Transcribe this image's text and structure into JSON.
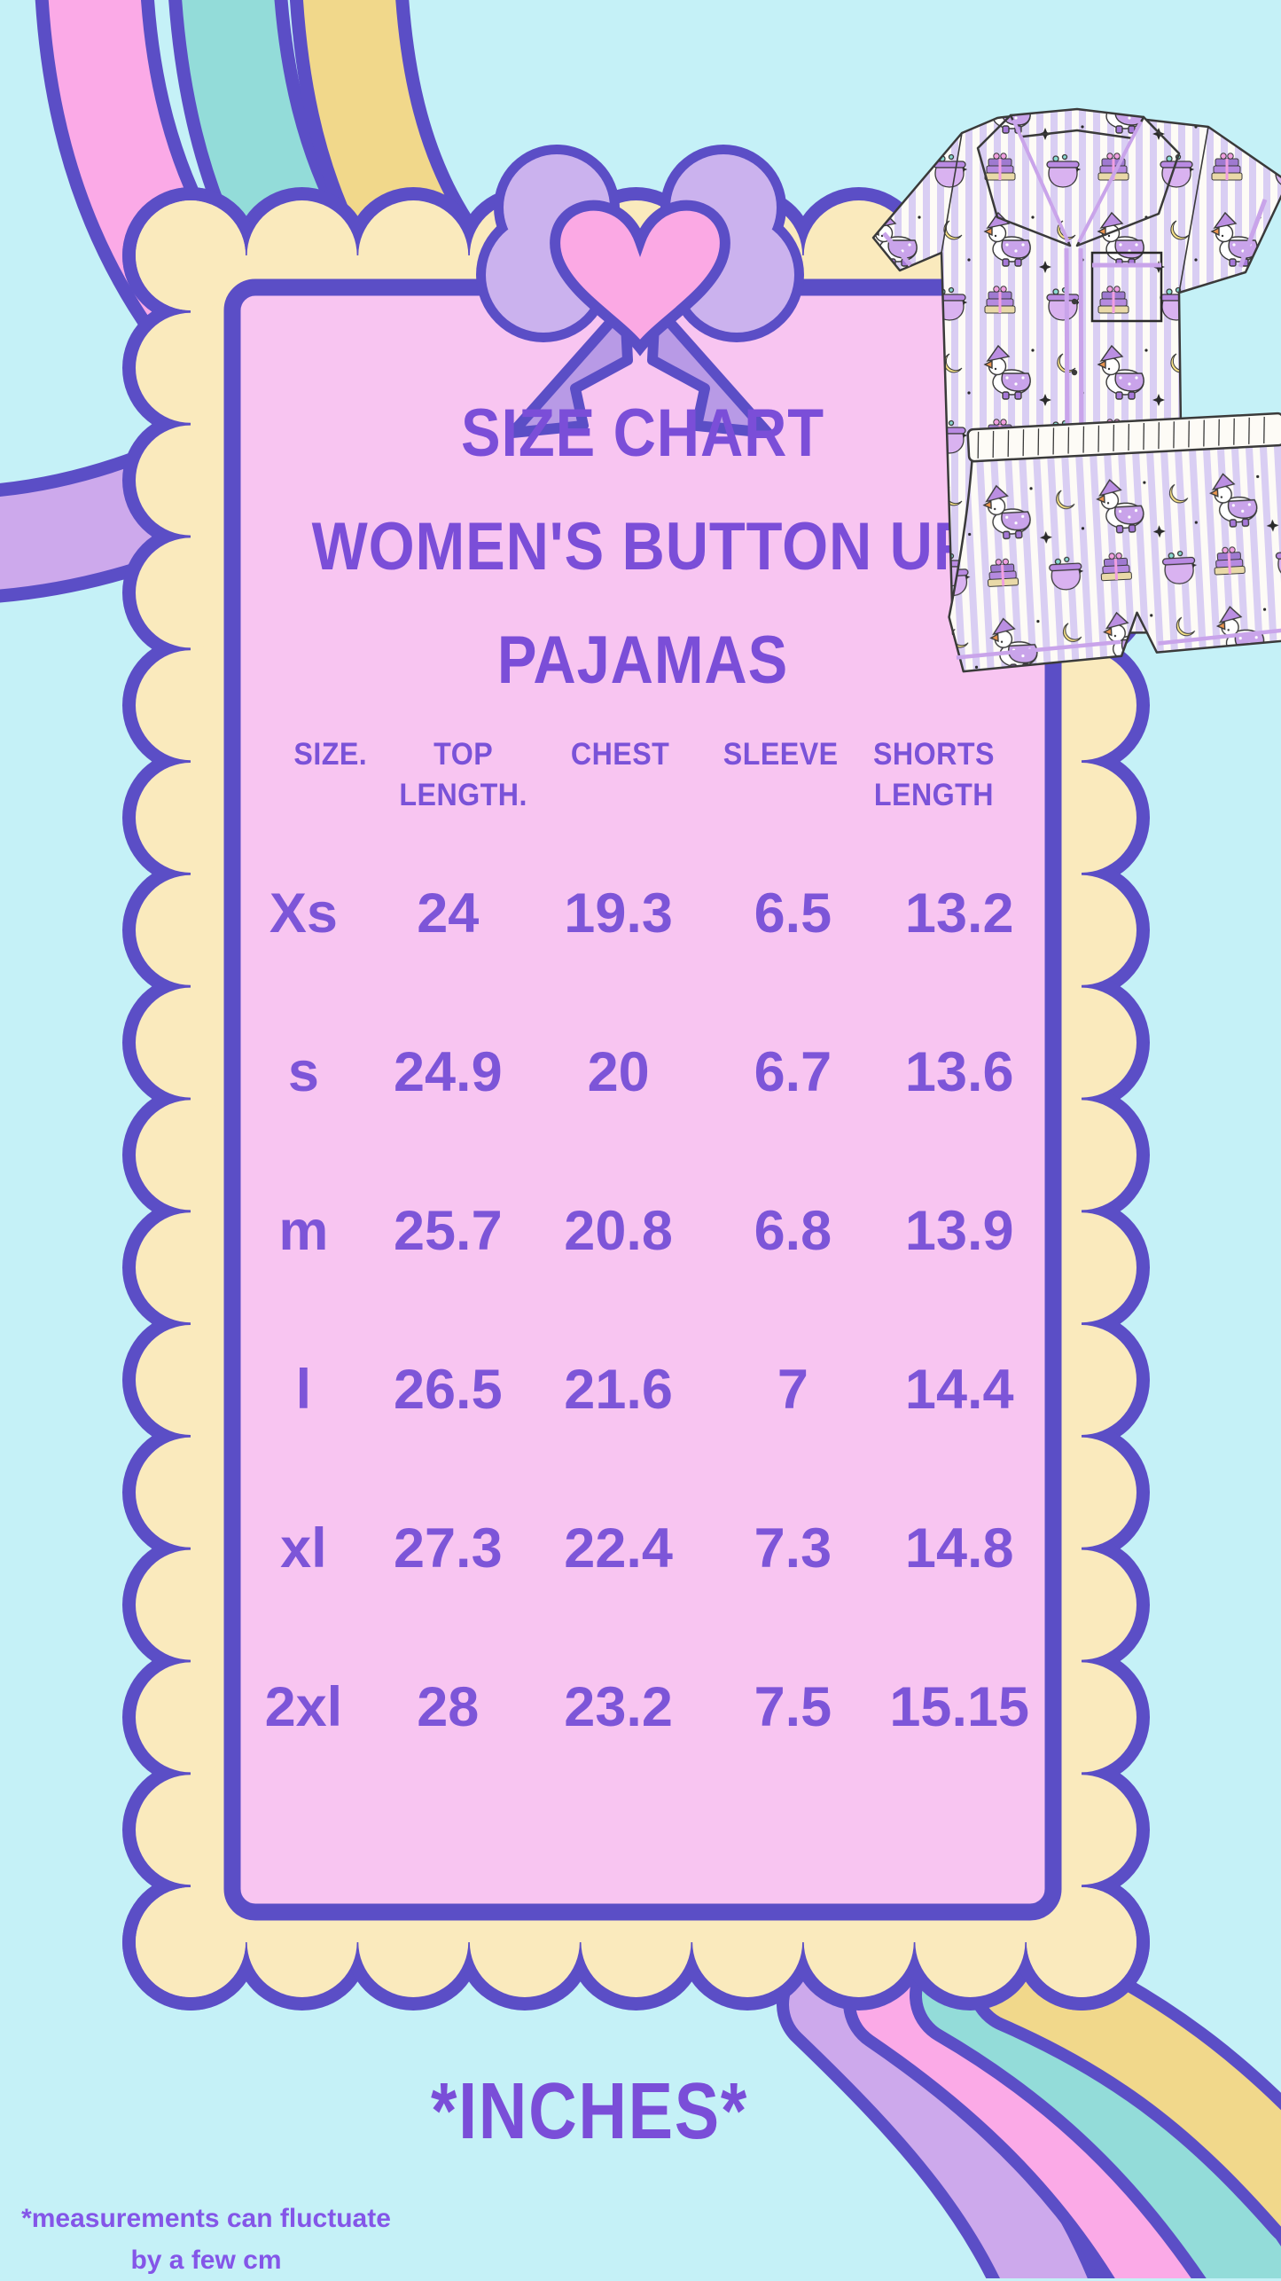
{
  "header": {
    "title_lines": [
      "SIZE CHART",
      "WOMEN'S BUTTON UP",
      "PAJAMAS"
    ]
  },
  "chart_data": {
    "type": "table",
    "title": "Size Chart Women's Button Up Pajamas",
    "units": "inches",
    "columns": [
      {
        "line1": "SIZE.",
        "line2": ""
      },
      {
        "line1": "TOP",
        "line2": "LENGTH."
      },
      {
        "line1": "CHEST",
        "line2": ""
      },
      {
        "line1": "SLEEVE",
        "line2": ""
      },
      {
        "line1": "SHORTS",
        "line2": "LENGTH"
      }
    ],
    "rows": [
      [
        "Xs",
        "24",
        "19.3",
        "6.5",
        "13.2"
      ],
      [
        "s",
        "24.9",
        "20",
        "6.7",
        "13.6"
      ],
      [
        "m",
        "25.7",
        "20.8",
        "6.8",
        "13.9"
      ],
      [
        "l",
        "26.5",
        "21.6",
        "7",
        "14.4"
      ],
      [
        "xl",
        "27.3",
        "22.4",
        "7.3",
        "14.8"
      ],
      [
        "2xl",
        "28",
        "23.2",
        "7.5",
        "15.15"
      ]
    ]
  },
  "footer": {
    "units_note": "*INCHES*",
    "disclaimer_line1": "*measurements can fluctuate",
    "disclaimer_line2": "by a few cm"
  },
  "decor": {
    "bow": "purple-bow-with-pink-heart",
    "pajamas": "witch-duck-print-button-up-pajama-set",
    "colors": {
      "background": "#c5f1f7",
      "frame_cream": "#faeabd",
      "outline_purple": "#5b4ec6",
      "panel_pink": "#f8c5f1",
      "text_purple": "#7b4ed8",
      "footnote_purple": "#8456e8",
      "ribbon_pink": "#fbaae7",
      "ribbon_teal": "#93dcd9",
      "ribbon_yellow": "#f1d88b",
      "ribbon_lavender": "#cda9ec",
      "bow_lavender": "#cbb2ee",
      "bow_tail_lavender": "#b89ae6",
      "heart_pink": "#fba9e4",
      "pajama_stripe": "#d9cef3"
    }
  }
}
